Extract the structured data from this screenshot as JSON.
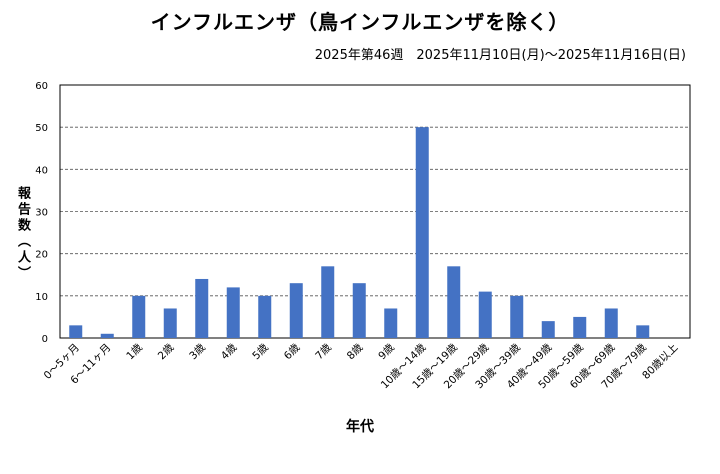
{
  "chart_data": {
    "type": "bar",
    "title": "インフルエンザ（鳥インフルエンザを除く）",
    "subtitle": "2025年第46週　2025年11月10日(月)～2025年11月16日(日)",
    "xlabel": "年代",
    "ylabel": "報告数（人）",
    "ylim": [
      0,
      60
    ],
    "yticks": [
      0,
      10,
      20,
      30,
      40,
      50,
      60
    ],
    "grid": true,
    "categories": [
      "0～5ヶ月",
      "6～11ヶ月",
      "1歳",
      "2歳",
      "3歳",
      "4歳",
      "5歳",
      "6歳",
      "7歳",
      "8歳",
      "9歳",
      "10歳～14歳",
      "15歳～19歳",
      "20歳～29歳",
      "30歳～39歳",
      "40歳～49歳",
      "50歳～59歳",
      "60歳～69歳",
      "70歳～79歳",
      "80歳以上"
    ],
    "values": [
      3,
      1,
      10,
      7,
      14,
      12,
      10,
      13,
      17,
      13,
      7,
      50,
      17,
      11,
      10,
      4,
      5,
      7,
      3,
      0
    ],
    "bar_color": "#4472c4"
  }
}
